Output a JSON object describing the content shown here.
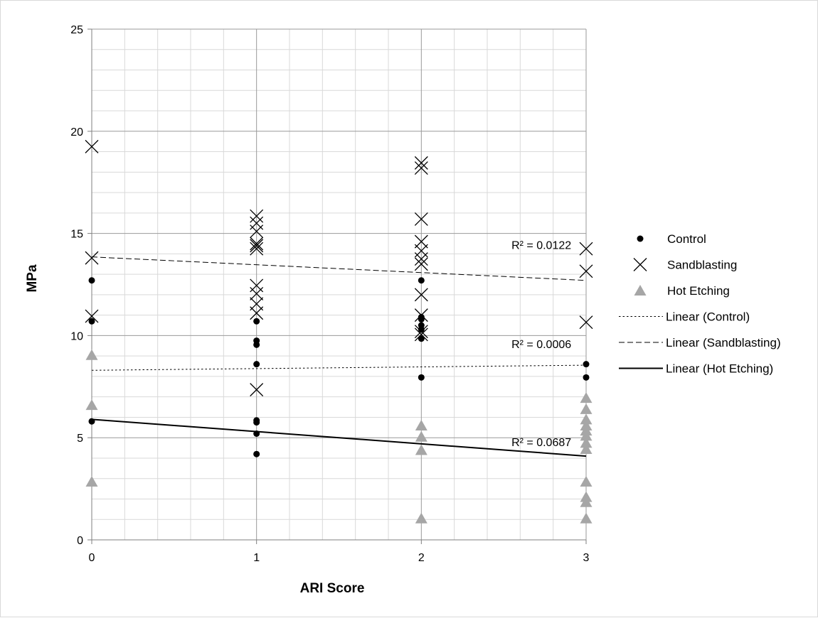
{
  "chart_data": {
    "type": "scatter",
    "title": "",
    "xlabel": "ARI Score",
    "ylabel": "MPa",
    "xlim": [
      0,
      3
    ],
    "ylim": [
      0,
      25
    ],
    "x_ticks": [
      0,
      1,
      2,
      3
    ],
    "y_ticks": [
      0,
      5,
      10,
      15,
      20,
      25
    ],
    "x_tick_labels": [
      "0",
      "1",
      "2",
      "3"
    ],
    "y_tick_labels": [
      "0",
      "5",
      "10",
      "15",
      "20",
      "25"
    ],
    "grid": true,
    "legend_position": "right",
    "series": [
      {
        "name": "Control",
        "marker": "circle",
        "color": "#000000",
        "points": [
          [
            0,
            12.7
          ],
          [
            0,
            10.7
          ],
          [
            0,
            5.8
          ],
          [
            1,
            10.7
          ],
          [
            1,
            9.75
          ],
          [
            1,
            9.55
          ],
          [
            1,
            8.6
          ],
          [
            1,
            5.85
          ],
          [
            1,
            5.75
          ],
          [
            1,
            5.2
          ],
          [
            1,
            4.2
          ],
          [
            2,
            12.7
          ],
          [
            2,
            10.9
          ],
          [
            2,
            10.8
          ],
          [
            2,
            10.5
          ],
          [
            2,
            10.3
          ],
          [
            2,
            9.85
          ],
          [
            2,
            7.95
          ],
          [
            3,
            8.6
          ],
          [
            3,
            7.95
          ]
        ]
      },
      {
        "name": "Sandblasting",
        "marker": "cross",
        "color": "#000000",
        "points": [
          [
            0,
            19.25
          ],
          [
            0,
            13.8
          ],
          [
            0,
            10.95
          ],
          [
            1,
            15.85
          ],
          [
            1,
            15.5
          ],
          [
            1,
            15.1
          ],
          [
            1,
            14.5
          ],
          [
            1,
            14.4
          ],
          [
            1,
            14.25
          ],
          [
            1,
            12.45
          ],
          [
            1,
            12.05
          ],
          [
            1,
            11.55
          ],
          [
            1,
            11.1
          ],
          [
            1,
            7.35
          ],
          [
            2,
            18.45
          ],
          [
            2,
            18.2
          ],
          [
            2,
            15.7
          ],
          [
            2,
            14.6
          ],
          [
            2,
            14.15
          ],
          [
            2,
            13.75
          ],
          [
            2,
            13.5
          ],
          [
            2,
            12.0
          ],
          [
            2,
            11.0
          ],
          [
            2,
            10.2
          ],
          [
            2,
            10.05
          ],
          [
            3,
            14.25
          ],
          [
            3,
            13.15
          ],
          [
            3,
            10.65
          ]
        ]
      },
      {
        "name": "Hot Etching",
        "marker": "triangle",
        "color": "#a6a6a6",
        "points": [
          [
            0,
            9.05
          ],
          [
            0,
            6.6
          ],
          [
            0,
            2.85
          ],
          [
            2,
            5.6
          ],
          [
            2,
            5.05
          ],
          [
            2,
            4.4
          ],
          [
            2,
            1.05
          ],
          [
            3,
            6.95
          ],
          [
            3,
            6.4
          ],
          [
            3,
            5.9
          ],
          [
            3,
            5.6
          ],
          [
            3,
            5.35
          ],
          [
            3,
            5.1
          ],
          [
            3,
            4.75
          ],
          [
            3,
            4.45
          ],
          [
            3,
            2.85
          ],
          [
            3,
            2.1
          ],
          [
            3,
            1.85
          ],
          [
            3,
            1.05
          ]
        ]
      }
    ],
    "trendlines": [
      {
        "name": "Linear (Control)",
        "style": "dotted",
        "width": 1,
        "color": "#000000",
        "start": [
          0,
          8.3
        ],
        "end": [
          3,
          8.55
        ],
        "r2_label": "R² = 0.0006",
        "r2_anchor": [
          2.91,
          9.6
        ]
      },
      {
        "name": "Linear (Sandblasting)",
        "style": "dashed",
        "width": 1,
        "color": "#000000",
        "start": [
          0,
          13.85
        ],
        "end": [
          3,
          12.7
        ],
        "r2_label": "R² = 0.0122",
        "r2_anchor": [
          2.91,
          14.45
        ]
      },
      {
        "name": "Linear (Hot Etching)",
        "style": "solid",
        "width": 2,
        "color": "#000000",
        "start": [
          0,
          5.9
        ],
        "end": [
          3,
          4.1
        ],
        "r2_label": "R² = 0.0687",
        "r2_anchor": [
          2.91,
          4.8
        ]
      }
    ],
    "legend": [
      {
        "label": "Control",
        "symbol": "circle"
      },
      {
        "label": "Sandblasting",
        "symbol": "cross"
      },
      {
        "label": "Hot Etching",
        "symbol": "triangle"
      },
      {
        "label": "Linear (Control)",
        "symbol": "dotted-line"
      },
      {
        "label": "Linear (Sandblasting)",
        "symbol": "dashed-line"
      },
      {
        "label": "Linear (Hot Etching)",
        "symbol": "solid-line"
      }
    ]
  }
}
